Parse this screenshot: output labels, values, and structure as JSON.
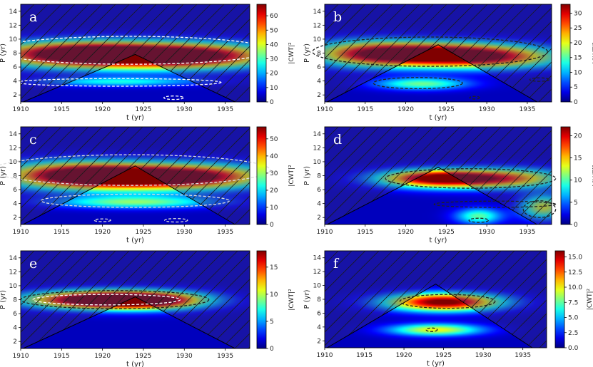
{
  "figure": {
    "xlabel": "t (yr)",
    "ylabel": "P (yr)",
    "colorbar_label": "|CWT|²"
  },
  "chart_data": [
    {
      "type": "heatmap",
      "panel_label": "a",
      "xlim": [
        1910,
        1938
      ],
      "ylim": [
        1,
        15
      ],
      "xticks": [
        1910,
        1915,
        1920,
        1925,
        1930,
        1935
      ],
      "yticks": [
        2,
        4,
        6,
        8,
        10,
        12,
        14
      ],
      "colorbar_ticks": [
        0,
        10,
        20,
        30,
        40,
        50,
        60
      ],
      "colorbar_max": 68,
      "coi_apex": {
        "t": 1924,
        "p": 7.8
      },
      "power_peaks": [
        {
          "t": 1924,
          "p": 7.6,
          "power": 68,
          "st": 9,
          "sp": 1.3
        },
        {
          "t": 1916,
          "p": 8.0,
          "power": 42,
          "st": 7,
          "sp": 1.2
        },
        {
          "t": 1933,
          "p": 7.6,
          "power": 30,
          "st": 6,
          "sp": 1.2
        },
        {
          "t": 1922,
          "p": 3.9,
          "power": 22,
          "st": 7,
          "sp": 0.45
        }
      ],
      "contours": [
        {
          "t": 1923.5,
          "p": 8.4,
          "rt": 17,
          "rp": 2.0,
          "color": "#ffffff"
        },
        {
          "t": 1922,
          "p": 3.8,
          "rt": 12.5,
          "rp": 0.55,
          "color": "#ffffff"
        },
        {
          "t": 1928.7,
          "p": 1.6,
          "rt": 1.2,
          "rp": 0.25,
          "color": "#ffffff"
        }
      ]
    },
    {
      "type": "heatmap",
      "panel_label": "b",
      "xlim": [
        1910,
        1938
      ],
      "ylim": [
        1,
        15
      ],
      "xticks": [
        1910,
        1915,
        1920,
        1925,
        1930,
        1935
      ],
      "yticks": [
        2,
        4,
        6,
        8,
        10,
        12,
        14
      ],
      "colorbar_ticks": [
        0,
        5,
        10,
        15,
        20,
        25,
        30
      ],
      "colorbar_max": 33,
      "coi_apex": {
        "t": 1924,
        "p": 9.2
      },
      "power_peaks": [
        {
          "t": 1924,
          "p": 7.8,
          "power": 33,
          "st": 7,
          "sp": 1.2
        },
        {
          "t": 1915,
          "p": 8.0,
          "power": 18,
          "st": 5,
          "sp": 1.3
        },
        {
          "t": 1932,
          "p": 7.3,
          "power": 14,
          "st": 6,
          "sp": 1.1
        },
        {
          "t": 1922,
          "p": 3.6,
          "power": 14,
          "st": 4,
          "sp": 0.6
        }
      ],
      "contours": [
        {
          "t": 1923,
          "p": 8.2,
          "rt": 14.5,
          "rp": 2.1,
          "color": "#222222"
        },
        {
          "t": 1921.5,
          "p": 3.7,
          "rt": 5.5,
          "rp": 0.8,
          "color": "#222222"
        },
        {
          "t": 1936.5,
          "p": 4.2,
          "rt": 1.2,
          "rp": 0.25,
          "color": "#222222"
        },
        {
          "t": 1928.5,
          "p": 1.6,
          "rt": 0.6,
          "rp": 0.2,
          "color": "#222222"
        }
      ]
    },
    {
      "type": "heatmap",
      "panel_label": "c",
      "xlim": [
        1910,
        1938
      ],
      "ylim": [
        1,
        15
      ],
      "xticks": [
        1910,
        1915,
        1920,
        1925,
        1930,
        1935
      ],
      "yticks": [
        2,
        4,
        6,
        8,
        10,
        12,
        14
      ],
      "colorbar_ticks": [
        0,
        10,
        20,
        30,
        40,
        50
      ],
      "colorbar_max": 57,
      "coi_apex": {
        "t": 1924,
        "p": 9.4
      },
      "power_peaks": [
        {
          "t": 1924,
          "p": 7.8,
          "power": 57,
          "st": 8,
          "sp": 1.3
        },
        {
          "t": 1916,
          "p": 8.2,
          "power": 34,
          "st": 6,
          "sp": 1.3
        },
        {
          "t": 1933,
          "p": 7.9,
          "power": 26,
          "st": 6,
          "sp": 1.2
        },
        {
          "t": 1924,
          "p": 4.2,
          "power": 25,
          "st": 7,
          "sp": 0.6
        }
      ],
      "contours": [
        {
          "t": 1923.5,
          "p": 8.8,
          "rt": 17,
          "rp": 2.2,
          "color": "#dddddd"
        },
        {
          "t": 1924,
          "p": 4.4,
          "rt": 11.5,
          "rp": 0.95,
          "color": "#dddddd"
        },
        {
          "t": 1929,
          "p": 1.6,
          "rt": 1.4,
          "rp": 0.25,
          "color": "#dddddd"
        },
        {
          "t": 1920,
          "p": 1.6,
          "rt": 1.0,
          "rp": 0.2,
          "color": "#dddddd"
        }
      ]
    },
    {
      "type": "heatmap",
      "panel_label": "d",
      "xlim": [
        1910,
        1938
      ],
      "ylim": [
        1,
        15
      ],
      "xticks": [
        1910,
        1915,
        1920,
        1925,
        1930,
        1935
      ],
      "yticks": [
        2,
        4,
        6,
        8,
        10,
        12,
        14
      ],
      "colorbar_ticks": [
        0,
        5,
        10,
        15,
        20
      ],
      "colorbar_max": 22,
      "coi_apex": {
        "t": 1924,
        "p": 9.2
      },
      "power_peaks": [
        {
          "t": 1924,
          "p": 7.6,
          "power": 22,
          "st": 5,
          "sp": 0.9
        },
        {
          "t": 1933,
          "p": 7.6,
          "power": 13,
          "st": 5,
          "sp": 1.0
        },
        {
          "t": 1937,
          "p": 3.5,
          "power": 12,
          "st": 2,
          "sp": 1.2
        },
        {
          "t": 1929,
          "p": 2.2,
          "power": 9,
          "st": 2,
          "sp": 0.8
        }
      ],
      "contours": [
        {
          "t": 1928,
          "p": 7.6,
          "rt": 10.5,
          "rp": 1.4,
          "color": "#222222"
        },
        {
          "t": 1931,
          "p": 3.9,
          "rt": 7.5,
          "rp": 0.45,
          "color": "#222222"
        },
        {
          "t": 1936.5,
          "p": 3.2,
          "rt": 2.0,
          "rp": 1.2,
          "color": "#222222"
        },
        {
          "t": 1929,
          "p": 1.6,
          "rt": 1.2,
          "rp": 0.3,
          "color": "#222222"
        }
      ]
    },
    {
      "type": "heatmap",
      "panel_label": "e",
      "xlim": [
        1910,
        1938
      ],
      "ylim": [
        1,
        15
      ],
      "xticks": [
        1910,
        1915,
        1920,
        1925,
        1930,
        1935
      ],
      "yticks": [
        2,
        4,
        6,
        8,
        10,
        12,
        14
      ],
      "colorbar_ticks": [
        0,
        5,
        10,
        15
      ],
      "colorbar_max": 18,
      "coi_apex": {
        "t": 1924,
        "p": 8.4
      },
      "power_peaks": [
        {
          "t": 1919,
          "p": 8.0,
          "power": 18,
          "st": 6,
          "sp": 0.9
        },
        {
          "t": 1926,
          "p": 7.9,
          "power": 14,
          "st": 5,
          "sp": 0.9
        }
      ],
      "contours": [
        {
          "t": 1921.5,
          "p": 8.0,
          "rt": 11.5,
          "rp": 1.3,
          "color": "#222222"
        },
        {
          "t": 1920.5,
          "p": 8.0,
          "rt": 9.0,
          "rp": 0.75,
          "color": "#ffffff"
        }
      ]
    },
    {
      "type": "heatmap",
      "panel_label": "f",
      "xlim": [
        1910,
        1938
      ],
      "ylim": [
        1,
        15
      ],
      "xticks": [
        1910,
        1915,
        1920,
        1925,
        1930,
        1935
      ],
      "yticks": [
        2,
        4,
        6,
        8,
        10,
        12,
        14
      ],
      "colorbar_ticks": [
        0.0,
        2.5,
        5.0,
        7.5,
        10.0,
        12.5,
        15.0
      ],
      "colorbar_max": 16,
      "coi_apex": {
        "t": 1924,
        "p": 10.2
      },
      "power_peaks": [
        {
          "t": 1925,
          "p": 7.6,
          "power": 16,
          "st": 5,
          "sp": 0.9
        },
        {
          "t": 1924,
          "p": 3.6,
          "power": 9,
          "st": 4,
          "sp": 0.6
        }
      ],
      "contours": [
        {
          "t": 1925.5,
          "p": 7.7,
          "rt": 6.0,
          "rp": 1.0,
          "color": "#222222"
        },
        {
          "t": 1923.5,
          "p": 3.6,
          "rt": 0.7,
          "rp": 0.25,
          "color": "#222222"
        }
      ]
    }
  ]
}
